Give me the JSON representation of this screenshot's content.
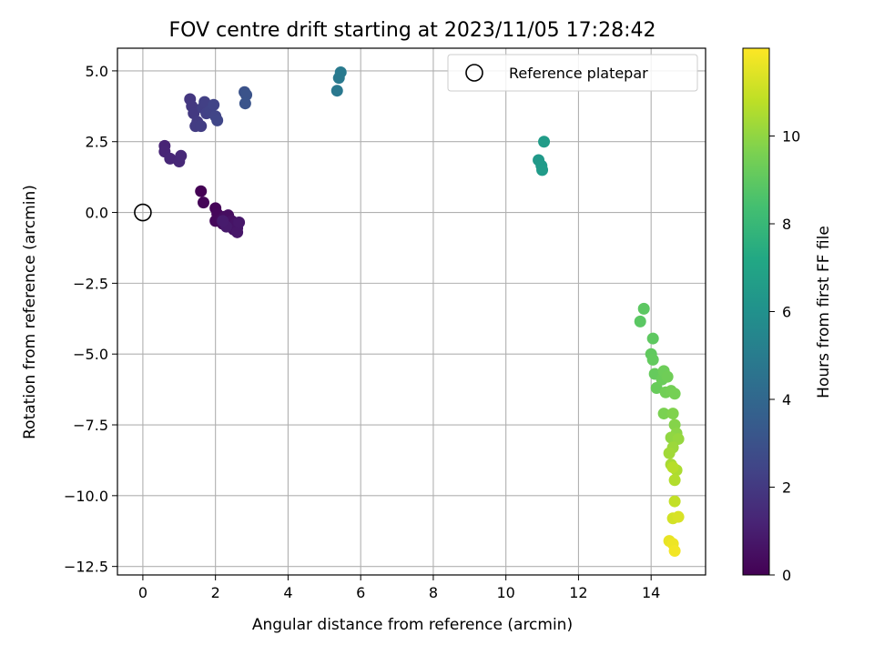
{
  "chart_data": {
    "type": "scatter",
    "title": "FOV centre drift starting at 2023/11/05 17:28:42",
    "xlabel": "Angular distance from reference (arcmin)",
    "ylabel": "Rotation from reference (arcmin)",
    "xlim": [
      -0.7,
      15.5
    ],
    "ylim": [
      -12.8,
      5.8
    ],
    "xticks": [
      0,
      2,
      4,
      6,
      8,
      10,
      12,
      14
    ],
    "yticks": [
      5.0,
      2.5,
      0.0,
      -2.5,
      -5.0,
      -7.5,
      -10.0,
      -12.5
    ],
    "ytick_labels": [
      "5.0",
      "2.5",
      "0.0",
      "−2.5",
      "−5.0",
      "−7.5",
      "−10.0",
      "−12.5"
    ],
    "grid": true,
    "legend": {
      "placement": "top-right",
      "entries": [
        "Reference platepar"
      ]
    },
    "reference_point": {
      "x": 0,
      "y": 0
    },
    "colorbar": {
      "label": "Hours from first FF file",
      "range": [
        0,
        12
      ],
      "ticks": [
        0,
        2,
        4,
        6,
        8,
        10
      ],
      "colormap": "viridis"
    },
    "points": [
      {
        "x": 1.6,
        "y": 0.75,
        "h": 0.0
      },
      {
        "x": 1.67,
        "y": 0.35,
        "h": 0.1
      },
      {
        "x": 2.0,
        "y": 0.15,
        "h": 0.15
      },
      {
        "x": 2.05,
        "y": -0.05,
        "h": 0.2
      },
      {
        "x": 2.0,
        "y": -0.3,
        "h": 0.25
      },
      {
        "x": 2.15,
        "y": -0.25,
        "h": 0.3
      },
      {
        "x": 2.2,
        "y": -0.4,
        "h": 0.35
      },
      {
        "x": 2.25,
        "y": -0.15,
        "h": 0.4
      },
      {
        "x": 2.35,
        "y": -0.1,
        "h": 0.45
      },
      {
        "x": 2.4,
        "y": -0.45,
        "h": 0.5
      },
      {
        "x": 2.45,
        "y": -0.3,
        "h": 0.55
      },
      {
        "x": 2.5,
        "y": -0.6,
        "h": 0.6
      },
      {
        "x": 2.55,
        "y": -0.4,
        "h": 0.65
      },
      {
        "x": 2.6,
        "y": -0.55,
        "h": 0.7
      },
      {
        "x": 2.6,
        "y": -0.7,
        "h": 0.75
      },
      {
        "x": 2.65,
        "y": -0.35,
        "h": 0.8
      },
      {
        "x": 2.3,
        "y": -0.5,
        "h": 0.85
      },
      {
        "x": 2.2,
        "y": -0.3,
        "h": 0.9
      },
      {
        "x": 0.6,
        "y": 2.35,
        "h": 1.2
      },
      {
        "x": 0.6,
        "y": 2.15,
        "h": 1.25
      },
      {
        "x": 0.75,
        "y": 1.9,
        "h": 1.3
      },
      {
        "x": 1.0,
        "y": 1.8,
        "h": 1.35
      },
      {
        "x": 1.05,
        "y": 2.0,
        "h": 1.4
      },
      {
        "x": 1.3,
        "y": 4.0,
        "h": 1.9
      },
      {
        "x": 1.35,
        "y": 3.75,
        "h": 1.95
      },
      {
        "x": 1.4,
        "y": 3.5,
        "h": 2.0
      },
      {
        "x": 1.5,
        "y": 3.2,
        "h": 2.05
      },
      {
        "x": 1.45,
        "y": 3.05,
        "h": 2.1
      },
      {
        "x": 1.6,
        "y": 3.05,
        "h": 2.15
      },
      {
        "x": 1.65,
        "y": 3.7,
        "h": 2.2
      },
      {
        "x": 1.7,
        "y": 3.9,
        "h": 2.25
      },
      {
        "x": 1.75,
        "y": 3.5,
        "h": 2.3
      },
      {
        "x": 1.85,
        "y": 3.6,
        "h": 2.35
      },
      {
        "x": 1.95,
        "y": 3.8,
        "h": 2.4
      },
      {
        "x": 2.0,
        "y": 3.4,
        "h": 2.45
      },
      {
        "x": 2.05,
        "y": 3.25,
        "h": 2.5
      },
      {
        "x": 2.8,
        "y": 4.25,
        "h": 3.0
      },
      {
        "x": 2.85,
        "y": 4.15,
        "h": 3.05
      },
      {
        "x": 2.82,
        "y": 3.85,
        "h": 3.1
      },
      {
        "x": 5.35,
        "y": 4.3,
        "h": 4.8
      },
      {
        "x": 5.4,
        "y": 4.75,
        "h": 4.85
      },
      {
        "x": 5.45,
        "y": 4.95,
        "h": 4.9
      },
      {
        "x": 10.9,
        "y": 1.85,
        "h": 6.4
      },
      {
        "x": 10.98,
        "y": 1.65,
        "h": 6.45
      },
      {
        "x": 11.0,
        "y": 1.5,
        "h": 6.5
      },
      {
        "x": 11.05,
        "y": 2.5,
        "h": 6.55
      },
      {
        "x": 13.7,
        "y": -3.85,
        "h": 8.9
      },
      {
        "x": 13.8,
        "y": -3.4,
        "h": 8.95
      },
      {
        "x": 14.05,
        "y": -4.45,
        "h": 9.0
      },
      {
        "x": 14.0,
        "y": -5.0,
        "h": 9.05
      },
      {
        "x": 14.05,
        "y": -5.2,
        "h": 9.1
      },
      {
        "x": 14.1,
        "y": -5.7,
        "h": 9.15
      },
      {
        "x": 14.15,
        "y": -6.2,
        "h": 9.2
      },
      {
        "x": 14.3,
        "y": -5.9,
        "h": 9.25
      },
      {
        "x": 14.35,
        "y": -5.6,
        "h": 9.3
      },
      {
        "x": 14.45,
        "y": -5.8,
        "h": 9.35
      },
      {
        "x": 14.4,
        "y": -6.35,
        "h": 9.4
      },
      {
        "x": 14.55,
        "y": -6.3,
        "h": 9.45
      },
      {
        "x": 14.65,
        "y": -6.4,
        "h": 9.5
      },
      {
        "x": 14.35,
        "y": -7.1,
        "h": 9.6
      },
      {
        "x": 14.6,
        "y": -7.1,
        "h": 9.7
      },
      {
        "x": 14.65,
        "y": -7.5,
        "h": 9.8
      },
      {
        "x": 14.7,
        "y": -7.8,
        "h": 9.9
      },
      {
        "x": 14.55,
        "y": -7.95,
        "h": 10.0
      },
      {
        "x": 14.75,
        "y": -8.0,
        "h": 10.1
      },
      {
        "x": 14.6,
        "y": -8.3,
        "h": 10.2
      },
      {
        "x": 14.5,
        "y": -8.5,
        "h": 10.3
      },
      {
        "x": 14.55,
        "y": -8.9,
        "h": 10.4
      },
      {
        "x": 14.7,
        "y": -9.1,
        "h": 10.5
      },
      {
        "x": 14.65,
        "y": -9.45,
        "h": 10.6
      },
      {
        "x": 14.6,
        "y": -9.0,
        "h": 10.7
      },
      {
        "x": 14.65,
        "y": -10.2,
        "h": 10.9
      },
      {
        "x": 14.6,
        "y": -10.8,
        "h": 11.2
      },
      {
        "x": 14.75,
        "y": -10.75,
        "h": 11.3
      },
      {
        "x": 14.5,
        "y": -11.6,
        "h": 11.6
      },
      {
        "x": 14.6,
        "y": -11.7,
        "h": 11.7
      },
      {
        "x": 14.65,
        "y": -11.95,
        "h": 11.8
      }
    ]
  }
}
